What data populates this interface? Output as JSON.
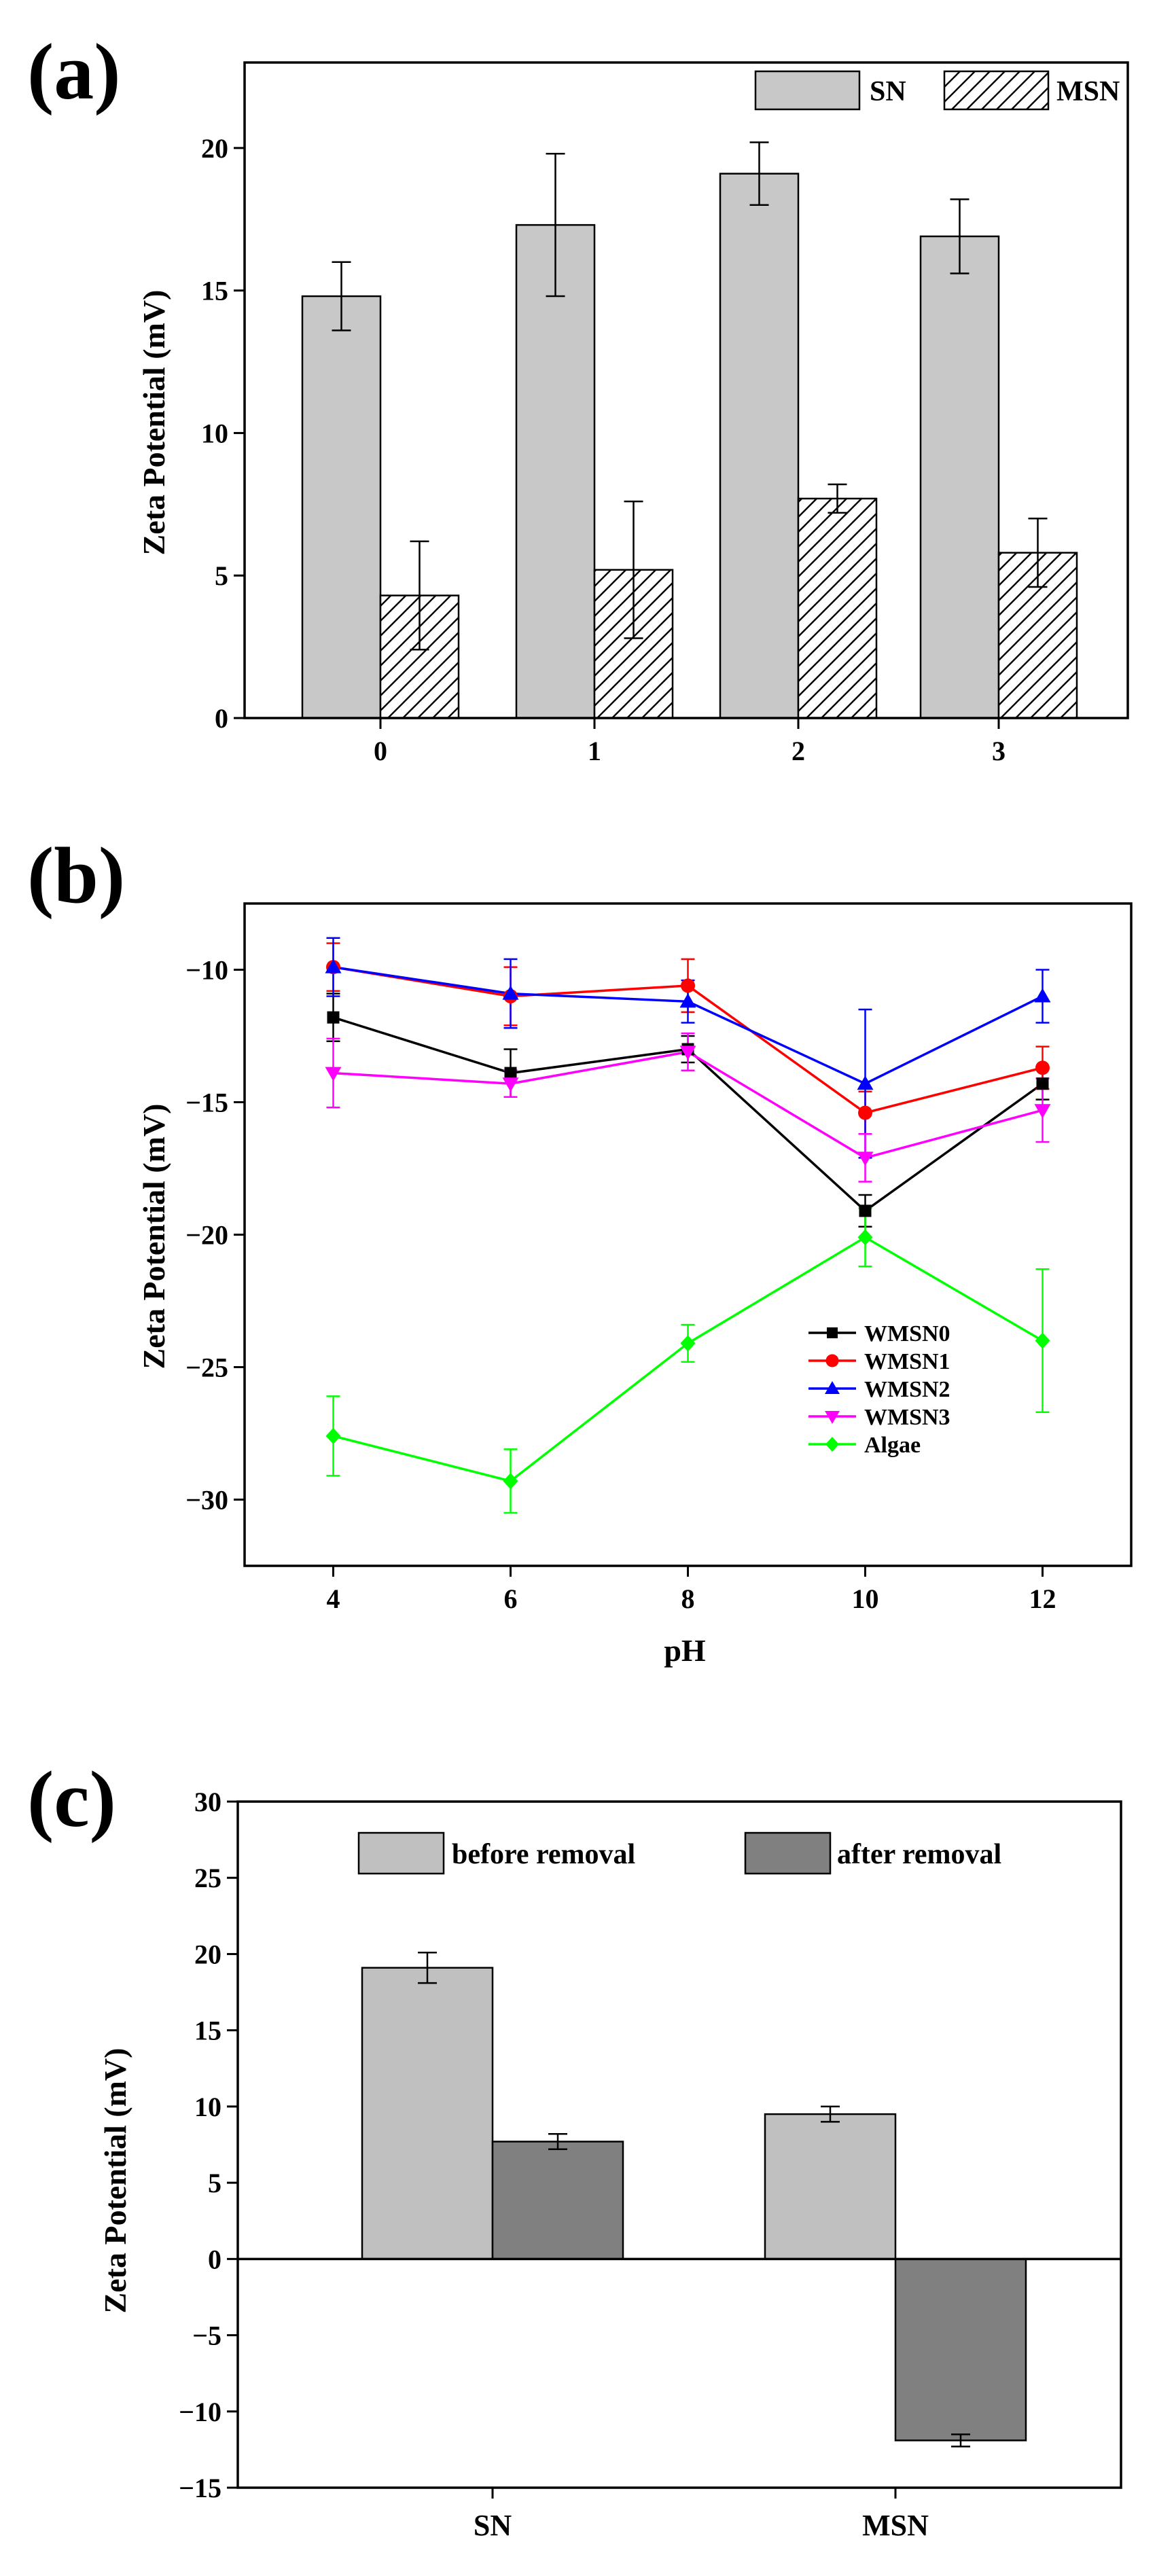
{
  "chart_data": [
    {
      "panel": "(a)",
      "type": "bar",
      "categories": [
        "0",
        "1",
        "2",
        "3"
      ],
      "series": [
        {
          "name": "SN",
          "pattern": "solid-light-gray",
          "color": "#c8c8c8",
          "values": [
            14.8,
            17.3,
            19.1,
            16.9
          ],
          "errors": [
            1.2,
            2.5,
            1.1,
            1.3
          ]
        },
        {
          "name": "MSN",
          "pattern": "diagonal-hatch",
          "color": "#ffffff",
          "values": [
            4.3,
            5.2,
            7.7,
            5.8
          ],
          "errors": [
            1.9,
            2.4,
            0.5,
            1.2
          ]
        }
      ],
      "xlabel": "",
      "ylabel": "Zeta Potential (mV)",
      "ylim": [
        0,
        23
      ],
      "yticks": [
        0,
        5,
        10,
        15,
        20
      ],
      "legend_position": "top-right"
    },
    {
      "panel": "(b)",
      "type": "line",
      "x": [
        4,
        6,
        8,
        10,
        12
      ],
      "series": [
        {
          "name": "WMSN0",
          "color": "#000000",
          "marker": "square",
          "values": [
            -11.8,
            -13.9,
            -13.0,
            -19.1,
            -14.3
          ],
          "errors": [
            0.9,
            0.9,
            0.5,
            0.6,
            0.6
          ]
        },
        {
          "name": "WMSN1",
          "color": "#ff0000",
          "marker": "circle",
          "values": [
            -9.9,
            -11.0,
            -10.6,
            -15.4,
            -13.7
          ],
          "errors": [
            0.9,
            1.1,
            1.0,
            0.8,
            0.8
          ]
        },
        {
          "name": "WMSN2",
          "color": "#0000ff",
          "marker": "triangle-up",
          "values": [
            -9.9,
            -10.9,
            -11.2,
            -14.3,
            -11.0
          ],
          "errors": [
            1.1,
            1.3,
            0.8,
            2.8,
            1.0
          ]
        },
        {
          "name": "WMSN3",
          "color": "#ff00ff",
          "marker": "triangle-down",
          "values": [
            -13.9,
            -14.3,
            -13.1,
            -17.1,
            -15.3
          ],
          "errors": [
            1.3,
            0.5,
            0.7,
            0.9,
            1.2
          ]
        },
        {
          "name": "Algae",
          "color": "#00ff00",
          "marker": "diamond",
          "values": [
            -27.6,
            -29.3,
            -24.1,
            -20.1,
            -24.0
          ],
          "errors": [
            1.5,
            1.2,
            0.7,
            1.1,
            2.7
          ]
        }
      ],
      "xlabel": "pH",
      "ylabel": "Zeta Potential (mV)",
      "xlim": [
        3,
        13
      ],
      "xticks": [
        4,
        6,
        8,
        10,
        12
      ],
      "ylim": [
        -32.5,
        -7.5
      ],
      "yticks": [
        -30,
        -25,
        -20,
        -15,
        -10
      ],
      "legend_position": "bottom-right"
    },
    {
      "panel": "(c)",
      "type": "bar",
      "categories": [
        "SN",
        "MSN"
      ],
      "series": [
        {
          "name": "before removal",
          "color": "#c0c0c0",
          "values": [
            19.1,
            9.5
          ],
          "errors": [
            1.0,
            0.5
          ]
        },
        {
          "name": "after removal",
          "color": "#808080",
          "values": [
            7.7,
            -11.9
          ],
          "errors": [
            0.5,
            0.4
          ]
        }
      ],
      "xlabel": "",
      "ylabel": "Zeta Potential (mV)",
      "ylim": [
        -15,
        30
      ],
      "yticks": [
        -15,
        -10,
        -5,
        0,
        5,
        10,
        15,
        20,
        25,
        30
      ],
      "zero_line": true,
      "legend_position": "top"
    }
  ]
}
